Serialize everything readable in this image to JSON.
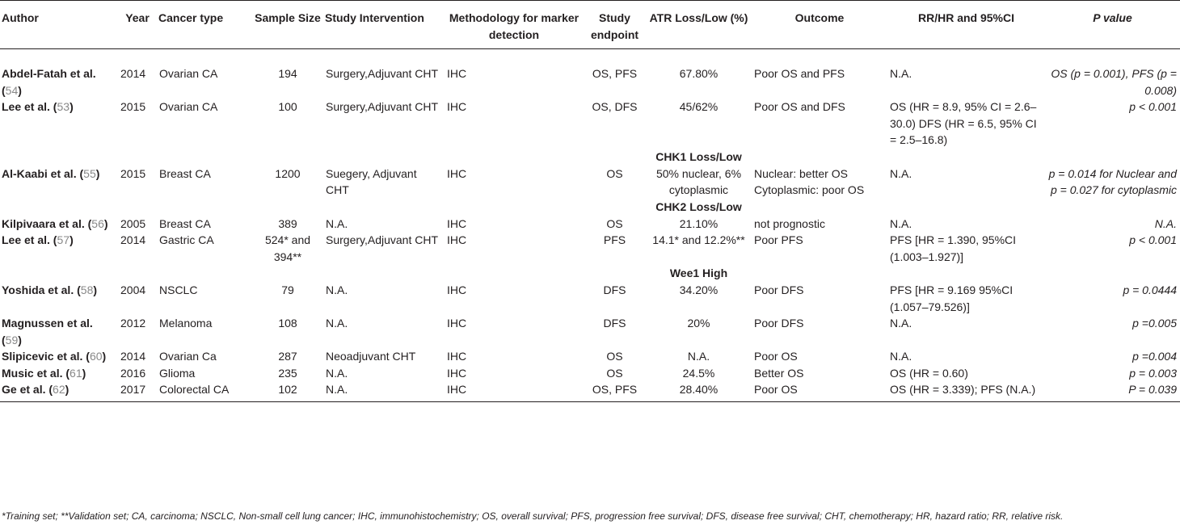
{
  "headers": [
    "Author",
    "Year",
    "Cancer type",
    "Sample Size",
    "Study Intervention",
    "Methodology for marker detection",
    "Study endpoint",
    "ATR Loss/Low (%)",
    "Outcome",
    "RR/HR and 95%CI",
    "P value"
  ],
  "rows": [
    {
      "author": "Abdel-Fatah et al.",
      "ref": "54",
      "year": "2014",
      "cancer": "Ovarian CA",
      "sample": "194",
      "intervention": "Surgery,Adjuvant CHT",
      "method": "IHC",
      "endpoint": "OS, PFS",
      "marker": "67.80%",
      "outcome": "Poor OS and PFS",
      "rrhr": "N.A.",
      "pvalue": "OS (p = 0.001), PFS (p = 0.008)"
    },
    {
      "author": "Lee et al.",
      "ref": "53",
      "year": "2015",
      "cancer": "Ovarian CA",
      "sample": "100",
      "intervention": "Surgery,Adjuvant CHT",
      "method": "IHC",
      "endpoint": "OS, DFS",
      "marker": "45/62%",
      "outcome": "Poor OS and DFS",
      "rrhr": "OS (HR = 8.9, 95% CI = 2.6–30.0) DFS (HR = 6.5, 95% CI = 2.5–16.8)",
      "pvalue": "p < 0.001"
    },
    {
      "author": "Al-Kaabi et al.",
      "ref": "55",
      "year": "2015",
      "cancer": "Breast CA",
      "sample": "1200",
      "intervention": "Suegery, Adjuvant CHT",
      "method": "IHC",
      "endpoint": "OS",
      "marker": "50% nuclear, 6% cytoplasmic",
      "outcome": "Nuclear: better OS Cytoplasmic: poor OS",
      "rrhr": "N.A.",
      "pvalue": "p = 0.014 for Nuclear and p = 0.027 for cytoplasmic"
    },
    {
      "author": "Kilpivaara et al.",
      "ref": "56",
      "year": "2005",
      "cancer": "Breast CA",
      "sample": "389",
      "intervention": "N.A.",
      "method": "IHC",
      "endpoint": "OS",
      "marker": "21.10%",
      "outcome": "not prognostic",
      "rrhr": "N.A.",
      "pvalue": "N.A."
    },
    {
      "author": "Lee et al.",
      "ref": "57",
      "year": "2014",
      "cancer": "Gastric CA",
      "sample": "524* and 394**",
      "intervention": "Surgery,Adjuvant CHT",
      "method": "IHC",
      "endpoint": "PFS",
      "marker": "14.1* and 12.2%**",
      "outcome": "Poor PFS",
      "rrhr": "PFS [HR = 1.390, 95%CI (1.003–1.927)]",
      "pvalue": "p < 0.001"
    },
    {
      "author": "Yoshida et al.",
      "ref": "58",
      "year": "2004",
      "cancer": "NSCLC",
      "sample": "79",
      "intervention": "N.A.",
      "method": "IHC",
      "endpoint": "DFS",
      "marker": "34.20%",
      "outcome": "Poor DFS",
      "rrhr": "PFS [HR = 9.169 95%CI (1.057–79.526)]",
      "pvalue": "p = 0.0444"
    },
    {
      "author": "Magnussen et al.",
      "ref": "59",
      "year": "2012",
      "cancer": "Melanoma",
      "sample": "108",
      "intervention": "N.A.",
      "method": "IHC",
      "endpoint": "DFS",
      "marker": "20%",
      "outcome": "Poor DFS",
      "rrhr": "N.A.",
      "pvalue": "p =0.005"
    },
    {
      "author": "Slipicevic et al.",
      "ref": "60",
      "year": "2014",
      "cancer": "Ovarian Ca",
      "sample": "287",
      "intervention": "Neoadjuvant CHT",
      "method": "IHC",
      "endpoint": "OS",
      "marker": "N.A.",
      "outcome": "Poor OS",
      "rrhr": "N.A.",
      "pvalue": "p =0.004"
    },
    {
      "author": "Music et al.",
      "ref": "61",
      "year": "2016",
      "cancer": "Glioma",
      "sample": "235",
      "intervention": "N.A.",
      "method": "IHC",
      "endpoint": "OS",
      "marker": "24.5%",
      "outcome": "Better OS",
      "rrhr": "OS (HR = 0.60)",
      "pvalue": "p = 0.003"
    },
    {
      "author": "Ge et al.",
      "ref": "62",
      "year": "2017",
      "cancer": "Colorectal CA",
      "sample": "102",
      "intervention": "N.A.",
      "method": "IHC",
      "endpoint": "OS, PFS",
      "marker": "28.40%",
      "outcome": "Poor OS",
      "rrhr": "OS (HR = 3.339); PFS (N.A.)",
      "pvalue": "P = 0.039"
    }
  ],
  "sections": [
    "CHK1 Loss/Low",
    "CHK2 Loss/Low",
    "Wee1 High"
  ],
  "footnote": "*Training set; **Validation set; CA, carcinoma; NSCLC, Non-small cell lung cancer; IHC, immunohistochemistry; OS, overall survival; PFS, progression free survival; DFS, disease free survival; CHT, chemotherapy; HR, hazard ratio; RR, relative risk."
}
